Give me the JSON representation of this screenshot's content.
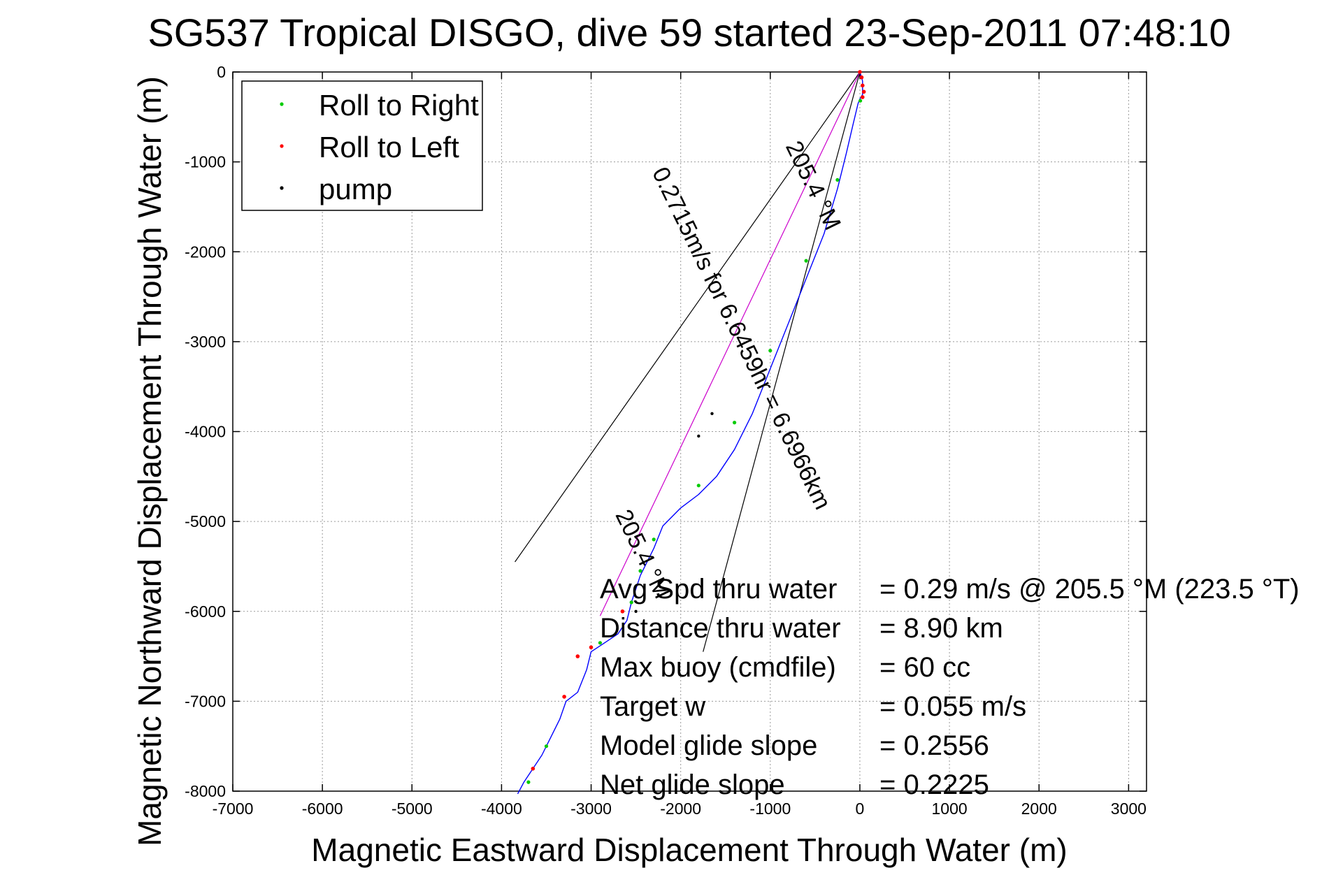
{
  "chart_data": {
    "type": "line",
    "title": "SG537 Tropical DISGO, dive 59 started 23-Sep-2011 07:48:10",
    "xlabel": "Magnetic Eastward Displacement Through Water (m)",
    "ylabel": "Magnetic Northward Displacement Through Water (m)",
    "xlim": [
      -7000,
      3200
    ],
    "ylim": [
      -8000,
      0
    ],
    "x_ticks": [
      -7000,
      -6000,
      -5000,
      -4000,
      -3000,
      -2000,
      -1000,
      0,
      1000,
      2000,
      3000
    ],
    "y_ticks": [
      0,
      -1000,
      -2000,
      -3000,
      -4000,
      -5000,
      -6000,
      -7000,
      -8000
    ],
    "x_tick_labels": [
      "-7000",
      "-6000",
      "-5000",
      "-4000",
      "-3000",
      "-2000",
      "-1000",
      "0",
      "1000",
      "2000",
      "3000"
    ],
    "y_tick_labels": [
      "0",
      "-1000",
      "-2000",
      "-3000",
      "-4000",
      "-5000",
      "-6000",
      "-7000",
      "-8000"
    ],
    "grid": true,
    "legend_position": "top-left",
    "legend": [
      {
        "label": "Roll to Right",
        "color": "#00cc00"
      },
      {
        "label": "Roll to Left",
        "color": "#ff0000"
      },
      {
        "label": "pump",
        "color": "#000000"
      }
    ],
    "colors": {
      "track": "#0000ff",
      "roll_right": "#00cc00",
      "roll_left": "#ff0000",
      "pump": "#000000",
      "heading_line": "#cc00cc",
      "cone": "#000000"
    },
    "series": [
      {
        "name": "track",
        "x": [
          0,
          30,
          30,
          0,
          -20,
          -80,
          -150,
          -250,
          -400,
          -600,
          -800,
          -1000,
          -1200,
          -1400,
          -1600,
          -1800,
          -2000,
          -2200,
          -2300,
          -2450,
          -2550,
          -2600,
          -2700,
          -2850,
          -3000,
          -3050,
          -3150,
          -3280,
          -3350,
          -3450,
          -3550,
          -3650,
          -3750,
          -3820
        ],
        "y": [
          0,
          -100,
          -250,
          -300,
          -350,
          -600,
          -900,
          -1300,
          -1800,
          -2300,
          -2800,
          -3300,
          -3800,
          -4200,
          -4500,
          -4700,
          -4850,
          -5050,
          -5300,
          -5600,
          -5900,
          -6100,
          -6250,
          -6350,
          -6450,
          -6650,
          -6900,
          -7000,
          -7200,
          -7400,
          -7600,
          -7750,
          -7900,
          -8030
        ]
      },
      {
        "name": "roll_right",
        "x": [
          5,
          -250,
          -600,
          -1000,
          -1400,
          -1800,
          -2300,
          -2450,
          -2550,
          -2900,
          -3500,
          -3700
        ],
        "y": [
          -320,
          -1200,
          -2100,
          -3100,
          -3900,
          -4600,
          -5200,
          -5550,
          -5900,
          -6350,
          -7500,
          -7900
        ]
      },
      {
        "name": "roll_left",
        "x": [
          0,
          20,
          30,
          45,
          30,
          -2650,
          -3000,
          -3150,
          -3300,
          -3650
        ],
        "y": [
          0,
          -60,
          -150,
          -220,
          -280,
          -6000,
          -6400,
          -6500,
          -6950,
          -7750
        ]
      },
      {
        "name": "pump",
        "x": [
          -1650,
          -1800,
          -2500
        ],
        "y": [
          -3800,
          -4050,
          -6000
        ]
      },
      {
        "name": "heading_line",
        "x": [
          0,
          -2900
        ],
        "y": [
          0,
          -6050
        ]
      },
      {
        "name": "cone_left",
        "x": [
          0,
          -3850
        ],
        "y": [
          0,
          -5450
        ]
      },
      {
        "name": "cone_right",
        "x": [
          0,
          -1750
        ],
        "y": [
          0,
          -6450
        ]
      }
    ],
    "track_labels": [
      {
        "text": "205.4 °M",
        "x": -600,
        "y": -1300,
        "angle": 64
      },
      {
        "text": "0.2715m/s for 6.6459hr = 6.6966km",
        "x": -1400,
        "y": -3000,
        "angle": 64
      },
      {
        "text": "205.4 °M",
        "x": -2500,
        "y": -5400,
        "angle": 64
      }
    ],
    "annotations": [
      {
        "label": "Avg Spd thru water",
        "value": "=  0.29 m/s @ 205.5 °M (223.5 °T)"
      },
      {
        "label": "Distance thru water",
        "value": "=  8.90 km"
      },
      {
        "label": "Max buoy (cmdfile)",
        "value": "= 60 cc"
      },
      {
        "label": "Target w",
        "value": "= 0.055 m/s"
      },
      {
        "label": "Model glide slope",
        "value": "= 0.2556"
      },
      {
        "label": "Net glide slope",
        "value": "= 0.2225"
      }
    ]
  }
}
